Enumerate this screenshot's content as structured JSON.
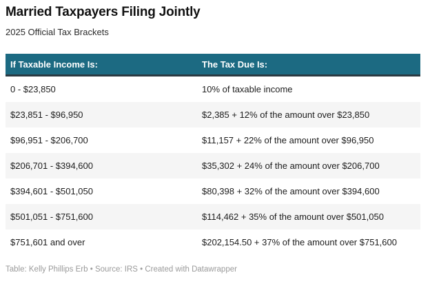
{
  "page": {
    "title": "Married Taxpayers Filing Jointly",
    "subtitle": "2025 Official Tax Brackets",
    "footer": "Table: Kelly Phillips Erb • Source: IRS • Created with Datawrapper"
  },
  "table": {
    "columns": [
      {
        "label": "If Taxable Income Is:"
      },
      {
        "label": "The Tax Due Is:"
      }
    ],
    "rows": [
      {
        "income": "0 - $23,850",
        "tax": "10% of taxable income"
      },
      {
        "income": "$23,851 - $96,950",
        "tax": "$2,385 + 12% of the amount over $23,850"
      },
      {
        "income": "$96,951 - $206,700",
        "tax": "$11,157 + 22% of the amount over $96,950"
      },
      {
        "income": "$206,701 - $394,600",
        "tax": "$35,302 + 24% of the amount over $206,700"
      },
      {
        "income": "$394,601 - $501,050",
        "tax": "$80,398 + 32% of the amount over $394,600"
      },
      {
        "income": "$501,051 - $751,600",
        "tax": "$114,462 + 35% of the amount over $501,050"
      },
      {
        "income": "$751,601 and over",
        "tax": "$202,154.50 + 37% of the amount over $751,600"
      }
    ]
  },
  "colors": {
    "header_background": "#1c6a82",
    "header_text": "#ffffff",
    "header_underline": "#2b3a42",
    "row_alt_background": "#f5f5f5",
    "body_text": "#1c1c1c",
    "footer_text": "#9a9a9a"
  },
  "chart_data": {
    "type": "table",
    "title": "Married Taxpayers Filing Jointly",
    "subtitle": "2025 Official Tax Brackets",
    "columns": [
      "If Taxable Income Is:",
      "The Tax Due Is:"
    ],
    "rows": [
      [
        "0 - $23,850",
        "10% of taxable income"
      ],
      [
        "$23,851 - $96,950",
        "$2,385 + 12% of the amount over $23,850"
      ],
      [
        "$96,951 - $206,700",
        "$11,157 + 22% of the amount over $96,950"
      ],
      [
        "$206,701 - $394,600",
        "$35,302 + 24% of the amount over $206,700"
      ],
      [
        "$394,601 - $501,050",
        "$80,398 + 32% of the amount over $394,600"
      ],
      [
        "$501,051 - $751,600",
        "$114,462 + 35% of the amount over $501,050"
      ],
      [
        "$751,601 and over",
        "$202,154.50 + 37% of the amount over $751,600"
      ]
    ],
    "bracket_rates_percent": [
      10,
      12,
      22,
      24,
      32,
      35,
      37
    ],
    "footer": "Table: Kelly Phillips Erb • Source: IRS • Created with Datawrapper",
    "layout_hints": {
      "striped_rows": true,
      "header_style": "teal-with-dark-underline"
    }
  }
}
